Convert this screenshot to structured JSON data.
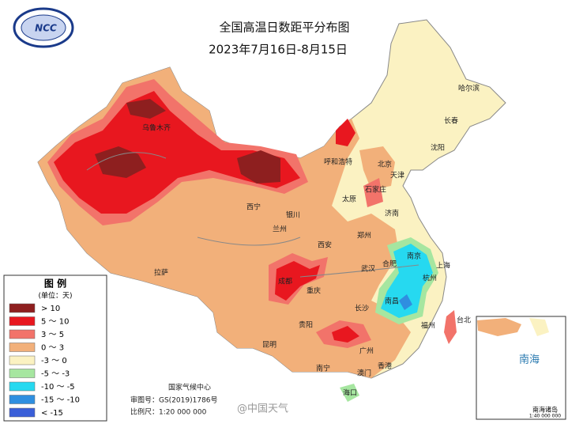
{
  "header": {
    "title": "全国高温日数距平分布图",
    "subtitle": "2023年7月16日-8月15日",
    "logo": "NCC"
  },
  "legend": {
    "title": "图 例",
    "unit": "(单位：天)",
    "items": [
      {
        "label": "> 10",
        "color": "#8e1f1f"
      },
      {
        "label": "5 ～ 10",
        "color": "#e8171f"
      },
      {
        "label": "3 ～ 5",
        "color": "#f2736a"
      },
      {
        "label": "0 ～ 3",
        "color": "#f2b07a"
      },
      {
        "label": "-3 ～ 0",
        "color": "#fbf2c2"
      },
      {
        "label": "-5 ～ -3",
        "color": "#a6e6a0"
      },
      {
        "label": "-10 ～ -5",
        "color": "#26d9f0"
      },
      {
        "label": "-15 ～ -10",
        "color": "#2f8fe0"
      },
      {
        "label": "< -15",
        "color": "#3a5fd8"
      }
    ]
  },
  "footer": {
    "agency": "国家气候中心",
    "approval": "审图号：GS(2019)1786号",
    "scale": "比例尺：1:20 000 000"
  },
  "inset": {
    "label": "南海",
    "islands": "南海诸岛",
    "scale": "1:40 000 000"
  },
  "cities": [
    "哈尔滨",
    "长春",
    "沈阳",
    "北京",
    "天津",
    "呼和浩特",
    "石家庄",
    "太原",
    "济南",
    "郑州",
    "西安",
    "兰州",
    "西宁",
    "银川",
    "乌鲁木齐",
    "拉萨",
    "成都",
    "重庆",
    "武汉",
    "合肥",
    "南京",
    "上海",
    "杭州",
    "南昌",
    "长沙",
    "贵阳",
    "昆明",
    "南宁",
    "广州",
    "福州",
    "台北",
    "海口",
    "香港",
    "澳门"
  ],
  "watermark": "@中国天气"
}
